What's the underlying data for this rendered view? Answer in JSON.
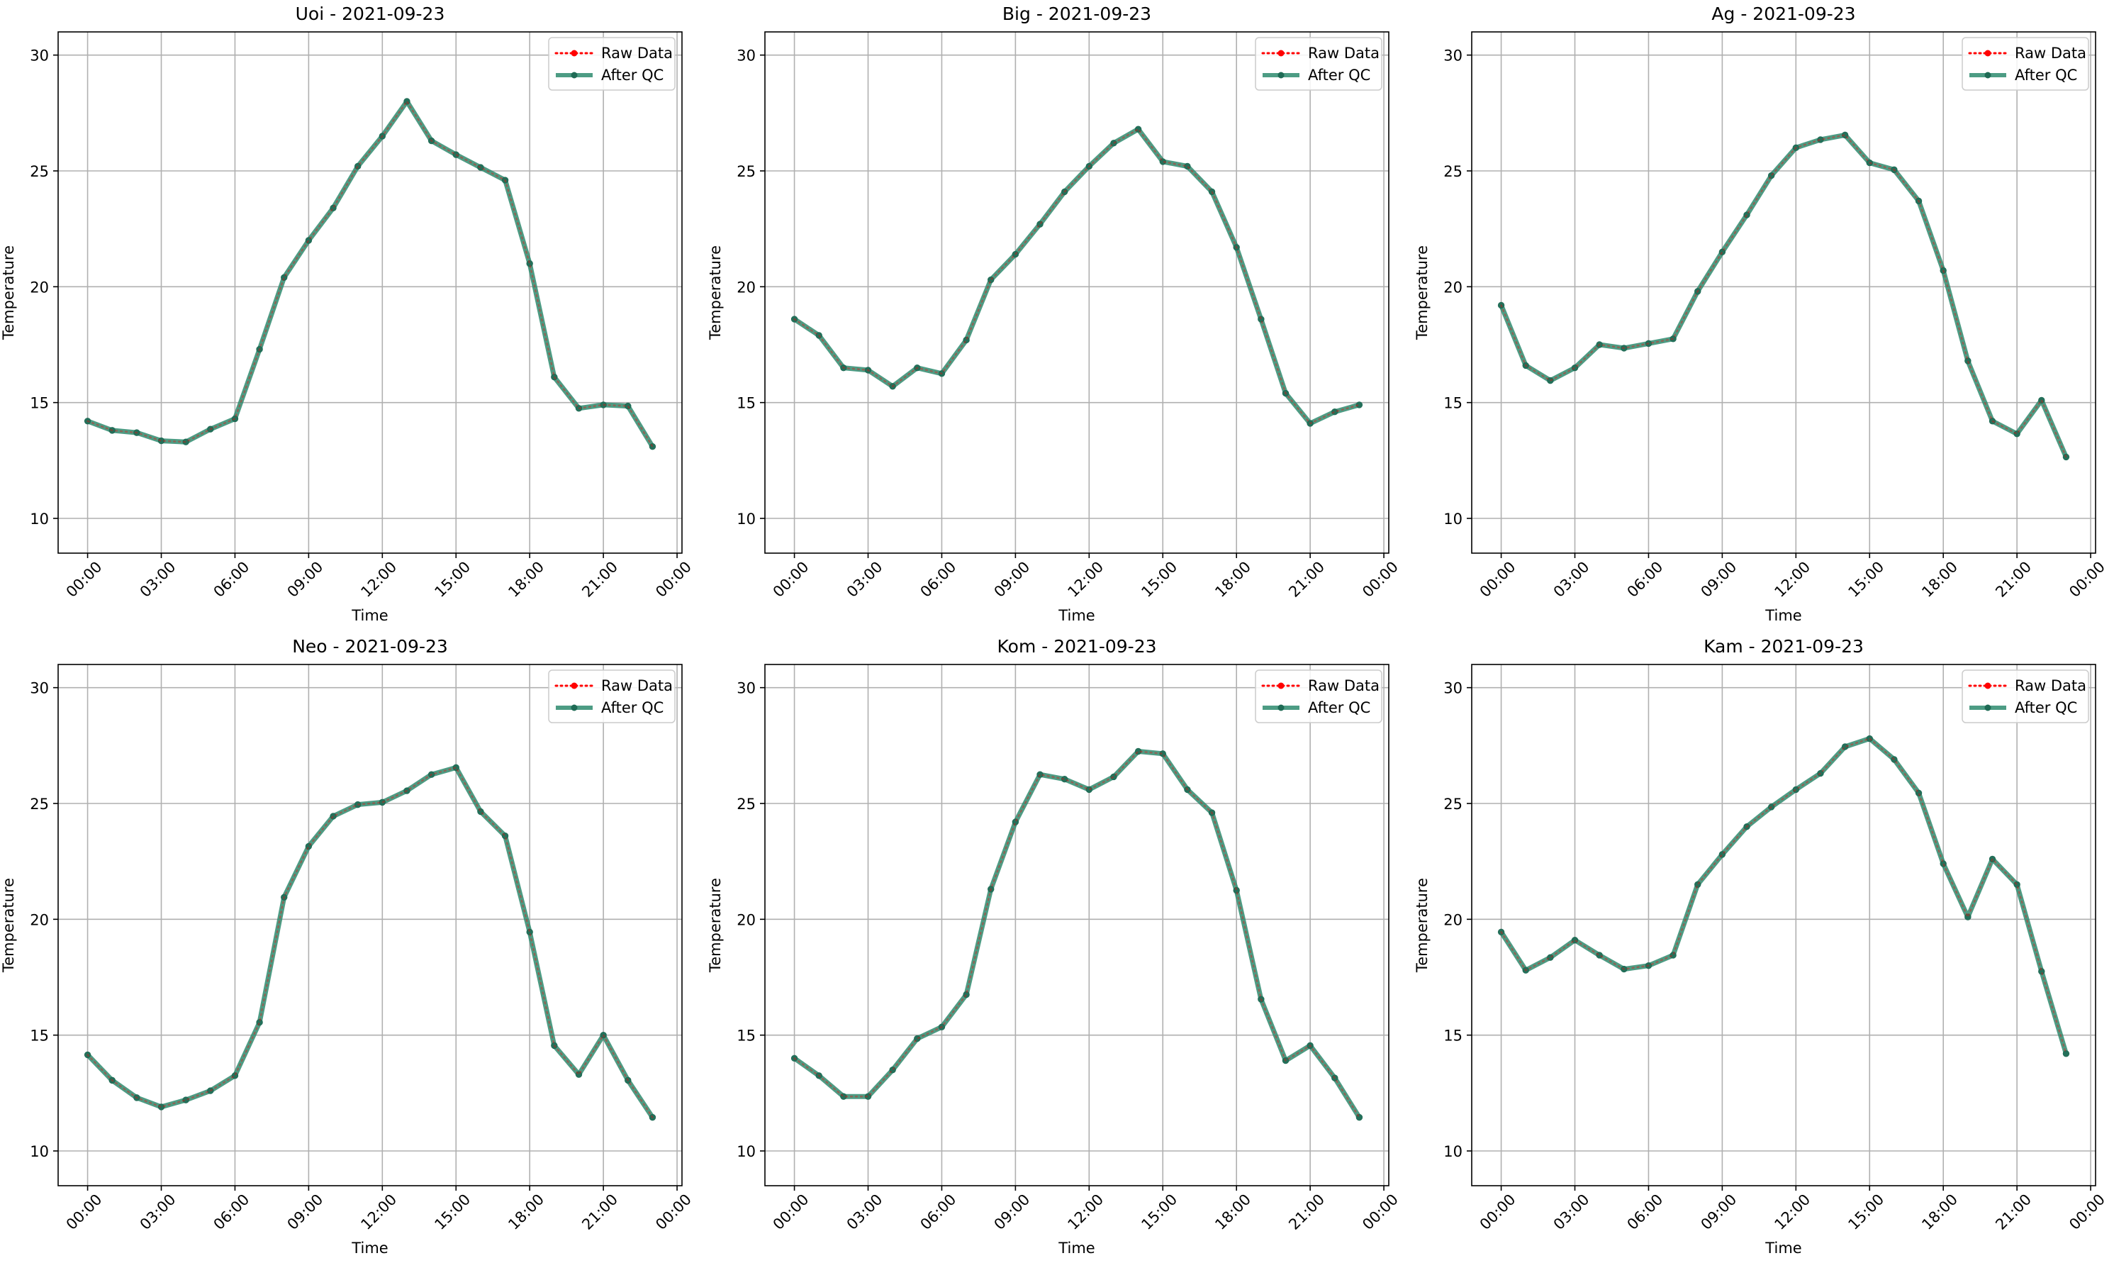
{
  "figure": {
    "colors": {
      "raw": "#ff0000",
      "qc": "#2e8b6e",
      "qc_marker": "#1f6b55",
      "grid": "#b0b0b0",
      "axis": "#000000"
    },
    "x_tick_labels": [
      "00:00",
      "03:00",
      "06:00",
      "09:00",
      "12:00",
      "15:00",
      "18:00",
      "21:00",
      "00:00"
    ],
    "y_ticks": [
      10,
      15,
      20,
      25,
      30
    ]
  },
  "chart_data": [
    {
      "type": "line",
      "title": "Uoi - 2021-09-23",
      "xlabel": "Time",
      "ylabel": "Temperature",
      "x_hours": [
        0,
        1,
        2,
        3,
        4,
        5,
        6,
        7,
        8,
        9,
        10,
        11,
        12,
        13,
        14,
        15,
        16,
        17,
        18,
        19,
        20,
        21,
        22,
        23
      ],
      "xlim": [
        -1.2,
        24.2
      ],
      "ylim": [
        8.5,
        31
      ],
      "series": [
        {
          "name": "Raw Data",
          "style": "dotted",
          "color": "#ff0000",
          "values": [
            14.2,
            13.8,
            13.7,
            13.35,
            13.3,
            13.85,
            14.3,
            17.3,
            20.4,
            22.0,
            23.4,
            25.2,
            26.5,
            28.0,
            26.3,
            25.7,
            25.15,
            24.6,
            21.0,
            16.1,
            14.75,
            14.9,
            14.85,
            13.1
          ]
        },
        {
          "name": "After QC",
          "style": "solid",
          "color": "#2e8b6e",
          "values": [
            14.2,
            13.8,
            13.7,
            13.35,
            13.3,
            13.85,
            14.3,
            17.3,
            20.4,
            22.0,
            23.4,
            25.2,
            26.5,
            28.0,
            26.3,
            25.7,
            25.15,
            24.6,
            21.0,
            16.1,
            14.75,
            14.9,
            14.85,
            13.1
          ]
        }
      ],
      "legend": "upper-right",
      "grid": true
    },
    {
      "type": "line",
      "title": "Big - 2021-09-23",
      "xlabel": "Time",
      "ylabel": "Temperature",
      "x_hours": [
        0,
        1,
        2,
        3,
        4,
        5,
        6,
        7,
        8,
        9,
        10,
        11,
        12,
        13,
        14,
        15,
        16,
        17,
        18,
        19,
        20,
        21,
        22,
        23
      ],
      "xlim": [
        -1.2,
        24.2
      ],
      "ylim": [
        8.5,
        31
      ],
      "series": [
        {
          "name": "Raw Data",
          "style": "dotted",
          "color": "#ff0000",
          "values": [
            18.6,
            17.9,
            16.5,
            16.4,
            15.7,
            16.5,
            16.25,
            17.7,
            20.3,
            21.4,
            22.7,
            24.1,
            25.2,
            26.2,
            26.8,
            25.4,
            25.2,
            24.1,
            21.7,
            18.6,
            15.4,
            14.1,
            14.6,
            14.9
          ]
        },
        {
          "name": "After QC",
          "style": "solid",
          "color": "#2e8b6e",
          "values": [
            18.6,
            17.9,
            16.5,
            16.4,
            15.7,
            16.5,
            16.25,
            17.7,
            20.3,
            21.4,
            22.7,
            24.1,
            25.2,
            26.2,
            26.8,
            25.4,
            25.2,
            24.1,
            21.7,
            18.6,
            15.4,
            14.1,
            14.6,
            14.9
          ]
        }
      ],
      "legend": "upper-right",
      "grid": true
    },
    {
      "type": "line",
      "title": "Ag - 2021-09-23",
      "xlabel": "Time",
      "ylabel": "Temperature",
      "x_hours": [
        0,
        1,
        2,
        3,
        4,
        5,
        6,
        7,
        8,
        9,
        10,
        11,
        12,
        13,
        14,
        15,
        16,
        17,
        18,
        19,
        20,
        21,
        22,
        23
      ],
      "xlim": [
        -1.2,
        24.2
      ],
      "ylim": [
        8.5,
        31
      ],
      "series": [
        {
          "name": "Raw Data",
          "style": "dotted",
          "color": "#ff0000",
          "values": [
            19.2,
            16.6,
            15.95,
            16.5,
            17.5,
            17.35,
            17.55,
            17.75,
            19.8,
            21.5,
            23.1,
            24.8,
            26.0,
            26.35,
            26.55,
            25.35,
            25.05,
            23.7,
            20.7,
            16.8,
            14.2,
            13.65,
            15.1,
            12.65
          ]
        },
        {
          "name": "After QC",
          "style": "solid",
          "color": "#2e8b6e",
          "values": [
            19.2,
            16.6,
            15.95,
            16.5,
            17.5,
            17.35,
            17.55,
            17.75,
            19.8,
            21.5,
            23.1,
            24.8,
            26.0,
            26.35,
            26.55,
            25.35,
            25.05,
            23.7,
            20.7,
            16.8,
            14.2,
            13.65,
            15.1,
            12.65
          ]
        }
      ],
      "legend": "upper-right",
      "grid": true
    },
    {
      "type": "line",
      "title": "Neo - 2021-09-23",
      "xlabel": "Time",
      "ylabel": "Temperature",
      "x_hours": [
        0,
        1,
        2,
        3,
        4,
        5,
        6,
        7,
        8,
        9,
        10,
        11,
        12,
        13,
        14,
        15,
        16,
        17,
        18,
        19,
        20,
        21,
        22,
        23
      ],
      "xlim": [
        -1.2,
        24.2
      ],
      "ylim": [
        8.5,
        31
      ],
      "series": [
        {
          "name": "Raw Data",
          "style": "dotted",
          "color": "#ff0000",
          "values": [
            14.15,
            13.05,
            12.3,
            11.9,
            12.2,
            12.6,
            13.25,
            15.55,
            20.95,
            23.15,
            24.45,
            24.95,
            25.05,
            25.55,
            26.25,
            26.55,
            24.65,
            23.6,
            19.45,
            14.55,
            13.3,
            15.0,
            13.05,
            11.45
          ]
        },
        {
          "name": "After QC",
          "style": "solid",
          "color": "#2e8b6e",
          "values": [
            14.15,
            13.05,
            12.3,
            11.9,
            12.2,
            12.6,
            13.25,
            15.55,
            20.95,
            23.15,
            24.45,
            24.95,
            25.05,
            25.55,
            26.25,
            26.55,
            24.65,
            23.6,
            19.45,
            14.55,
            13.3,
            15.0,
            13.05,
            11.45
          ]
        }
      ],
      "legend": "upper-right",
      "grid": true
    },
    {
      "type": "line",
      "title": "Kom - 2021-09-23",
      "xlabel": "Time",
      "ylabel": "Temperature",
      "x_hours": [
        0,
        1,
        2,
        3,
        4,
        5,
        6,
        7,
        8,
        9,
        10,
        11,
        12,
        13,
        14,
        15,
        16,
        17,
        18,
        19,
        20,
        21,
        22,
        23
      ],
      "xlim": [
        -1.2,
        24.2
      ],
      "ylim": [
        8.5,
        31
      ],
      "series": [
        {
          "name": "Raw Data",
          "style": "dotted",
          "color": "#ff0000",
          "values": [
            14.0,
            13.25,
            12.35,
            12.35,
            13.5,
            14.85,
            15.35,
            16.75,
            21.3,
            24.2,
            26.25,
            26.05,
            25.6,
            26.15,
            27.25,
            27.15,
            25.6,
            24.6,
            21.25,
            16.55,
            13.9,
            14.55,
            13.15,
            11.45
          ]
        },
        {
          "name": "After QC",
          "style": "solid",
          "color": "#2e8b6e",
          "values": [
            14.0,
            13.25,
            12.35,
            12.35,
            13.5,
            14.85,
            15.35,
            16.75,
            21.3,
            24.2,
            26.25,
            26.05,
            25.6,
            26.15,
            27.25,
            27.15,
            25.6,
            24.6,
            21.25,
            16.55,
            13.9,
            14.55,
            13.15,
            11.45
          ]
        }
      ],
      "legend": "upper-right",
      "grid": true
    },
    {
      "type": "line",
      "title": "Kam - 2021-09-23",
      "xlabel": "Time",
      "ylabel": "Temperature",
      "x_hours": [
        0,
        1,
        2,
        3,
        4,
        5,
        6,
        7,
        8,
        9,
        10,
        11,
        12,
        13,
        14,
        15,
        16,
        17,
        18,
        19,
        20,
        21,
        22,
        23
      ],
      "xlim": [
        -1.2,
        24.2
      ],
      "ylim": [
        8.5,
        31
      ],
      "series": [
        {
          "name": "Raw Data",
          "style": "dotted",
          "color": "#ff0000",
          "values": [
            19.45,
            17.8,
            18.35,
            19.1,
            18.45,
            17.85,
            18.0,
            18.45,
            21.5,
            22.8,
            24.0,
            24.85,
            25.6,
            26.3,
            27.45,
            27.8,
            26.9,
            25.45,
            22.4,
            20.1,
            22.6,
            21.5,
            17.75,
            14.2
          ]
        },
        {
          "name": "After QC",
          "style": "solid",
          "color": "#2e8b6e",
          "values": [
            19.45,
            17.8,
            18.35,
            19.1,
            18.45,
            17.85,
            18.0,
            18.45,
            21.5,
            22.8,
            24.0,
            24.85,
            25.6,
            26.3,
            27.45,
            27.8,
            26.9,
            25.45,
            22.4,
            20.1,
            22.6,
            21.5,
            17.75,
            14.2
          ]
        }
      ],
      "legend": "upper-right",
      "grid": true
    }
  ]
}
